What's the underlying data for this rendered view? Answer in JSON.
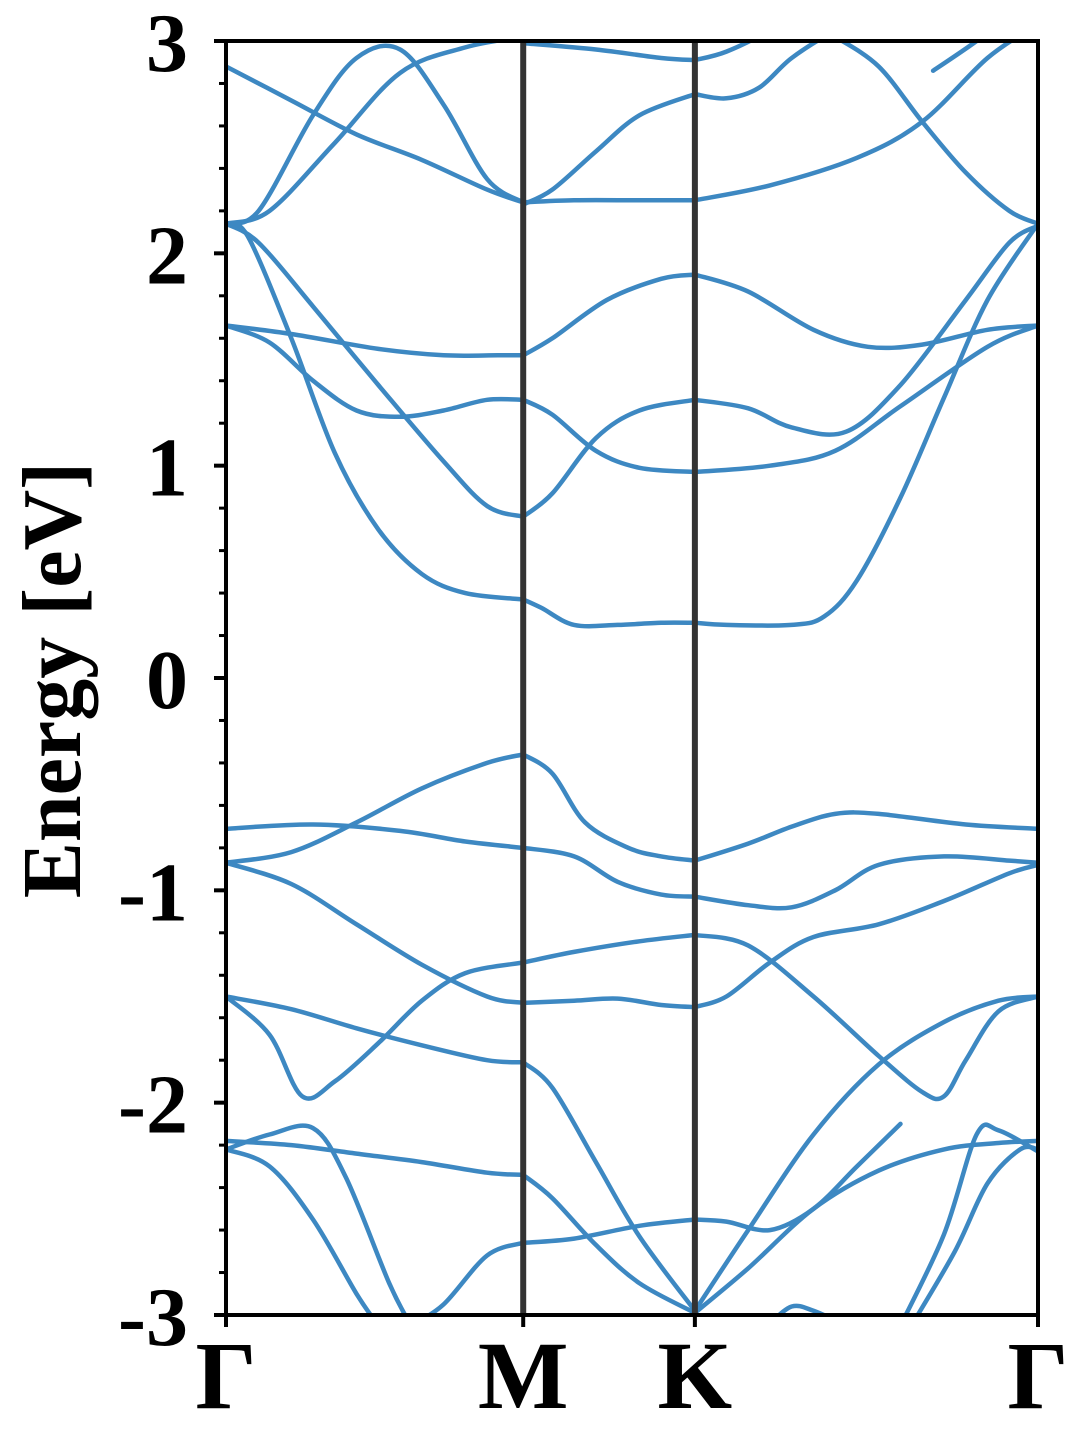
{
  "chart_data": {
    "type": "line",
    "title": "",
    "xlabel": "",
    "ylabel": "Energy [eV]",
    "ylim": [
      -3,
      3
    ],
    "xlim": [
      0,
      3.732
    ],
    "yticks": [
      {
        "value": 3,
        "label": "3"
      },
      {
        "value": 2,
        "label": "2"
      },
      {
        "value": 1,
        "label": "1"
      },
      {
        "value": 0,
        "label": "0"
      },
      {
        "value": -1,
        "label": "-1"
      },
      {
        "value": -2,
        "label": "-2"
      },
      {
        "value": -3,
        "label": "-3"
      }
    ],
    "yminor_step": 0.2,
    "high_symmetry_points": [
      {
        "label": "Γ",
        "x": 0
      },
      {
        "label": "M",
        "x": 1.366
      },
      {
        "label": "K",
        "x": 2.155
      },
      {
        "label": "Γ",
        "x": 3.732
      }
    ],
    "grid": false,
    "colors": {
      "band": "#3d88c2",
      "divider": "#333333",
      "axis": "#000000"
    },
    "series": [
      {
        "x": [
          0,
          0.3,
          0.7,
          1.0,
          1.25,
          1.366
        ],
        "values": [
          1.66,
          1.62,
          1.55,
          1.52,
          1.52,
          1.52
        ]
      },
      {
        "x": [
          1.366,
          1.5,
          1.75,
          2.0,
          2.155
        ],
        "values": [
          1.52,
          1.6,
          1.78,
          1.88,
          1.9
        ]
      },
      {
        "x": [
          2.155,
          2.4,
          2.7,
          2.95,
          3.2,
          3.5,
          3.732
        ],
        "values": [
          1.9,
          1.82,
          1.64,
          1.56,
          1.57,
          1.64,
          1.66
        ]
      },
      {
        "x": [
          0,
          0.2,
          0.4,
          0.6,
          0.8,
          1.0,
          1.2,
          1.366
        ],
        "values": [
          1.66,
          1.58,
          1.4,
          1.26,
          1.23,
          1.26,
          1.31,
          1.31
        ]
      },
      {
        "x": [
          1.366,
          1.5,
          1.7,
          1.9,
          2.155
        ],
        "values": [
          1.31,
          1.24,
          1.07,
          0.99,
          0.97
        ]
      },
      {
        "x": [
          2.155,
          2.5,
          2.8,
          3.1,
          3.5,
          3.732
        ],
        "values": [
          0.97,
          1.0,
          1.07,
          1.28,
          1.56,
          1.66
        ]
      },
      {
        "x": [
          0,
          0.15,
          0.4,
          0.7,
          1.0,
          1.2,
          1.366
        ],
        "values": [
          2.14,
          2.05,
          1.75,
          1.38,
          1.02,
          0.81,
          0.76
        ]
      },
      {
        "x": [
          1.366,
          1.5,
          1.7,
          1.9,
          2.155
        ],
        "values": [
          0.76,
          0.87,
          1.13,
          1.26,
          1.31
        ]
      },
      {
        "x": [
          2.155,
          2.4,
          2.6,
          2.85,
          3.1,
          3.4,
          3.6,
          3.732
        ],
        "values": [
          1.31,
          1.27,
          1.18,
          1.16,
          1.38,
          1.78,
          2.05,
          2.13
        ]
      },
      {
        "x": [
          0,
          0.1,
          0.3,
          0.5,
          0.7,
          0.9,
          1.1,
          1.366
        ],
        "values": [
          2.14,
          2.08,
          1.6,
          1.06,
          0.7,
          0.49,
          0.4,
          0.37
        ]
      },
      {
        "x": [
          1.366,
          1.45,
          1.6,
          1.8,
          2.0,
          2.155
        ],
        "values": [
          0.37,
          0.33,
          0.25,
          0.25,
          0.26,
          0.26
        ]
      },
      {
        "x": [
          2.155,
          2.3,
          2.6,
          2.75,
          2.9,
          3.1,
          3.3,
          3.5,
          3.732
        ],
        "values": [
          0.26,
          0.25,
          0.25,
          0.29,
          0.46,
          0.85,
          1.32,
          1.78,
          2.14
        ]
      },
      {
        "x": [
          0,
          0.15,
          0.4,
          0.6,
          0.8,
          1.0,
          1.2,
          1.366
        ],
        "values": [
          2.14,
          2.2,
          2.65,
          2.92,
          2.96,
          2.7,
          2.35,
          2.24
        ]
      },
      {
        "x": [
          0,
          0.2,
          0.5,
          0.8,
          1.1,
          1.366
        ],
        "values": [
          2.14,
          2.2,
          2.52,
          2.85,
          2.97,
          3.02
        ]
      },
      {
        "x": [
          0,
          0.3,
          0.6,
          0.9,
          1.2,
          1.366
        ],
        "values": [
          2.88,
          2.72,
          2.56,
          2.44,
          2.3,
          2.24
        ]
      },
      {
        "x": [
          1.366,
          1.6,
          1.9,
          2.155
        ],
        "values": [
          2.24,
          2.25,
          2.25,
          2.25
        ]
      },
      {
        "x": [
          2.155,
          2.5,
          2.9,
          3.2,
          3.5,
          3.732
        ],
        "values": [
          2.25,
          2.32,
          2.45,
          2.62,
          2.92,
          3.08
        ]
      },
      {
        "x": [
          1.366,
          1.5,
          1.7,
          1.9,
          2.155
        ],
        "values": [
          2.23,
          2.3,
          2.48,
          2.65,
          2.75
        ]
      },
      {
        "x": [
          2.155,
          2.3,
          2.45,
          2.6,
          2.8,
          3.0
        ],
        "values": [
          2.75,
          2.73,
          2.78,
          2.92,
          3.05,
          3.15
        ]
      },
      {
        "x": [
          1.366,
          1.7,
          2.0,
          2.155
        ],
        "values": [
          2.99,
          2.96,
          2.92,
          2.91
        ]
      },
      {
        "x": [
          2.155,
          2.3,
          2.5,
          2.7
        ],
        "values": [
          2.91,
          2.95,
          3.05,
          3.18
        ]
      },
      {
        "x": [
          2.8,
          3.0,
          3.2,
          3.4,
          3.6,
          3.732
        ],
        "values": [
          3.02,
          2.88,
          2.62,
          2.38,
          2.2,
          2.14
        ]
      },
      {
        "x": [
          3.25,
          3.45,
          3.6,
          3.732
        ],
        "values": [
          2.86,
          3.0,
          3.12,
          3.2
        ]
      },
      {
        "x": [
          0,
          0.4,
          0.8,
          1.1,
          1.366
        ],
        "values": [
          -0.71,
          -0.69,
          -0.72,
          -0.77,
          -0.8
        ]
      },
      {
        "x": [
          1.366,
          1.6,
          1.8,
          2.0,
          2.155
        ],
        "values": [
          -0.8,
          -0.84,
          -0.96,
          -1.02,
          -1.03
        ]
      },
      {
        "x": [
          2.155,
          2.4,
          2.6,
          2.8,
          3.0,
          3.3,
          3.6,
          3.732
        ],
        "values": [
          -1.03,
          -1.07,
          -1.08,
          -1.0,
          -0.88,
          -0.84,
          -0.86,
          -0.87
        ]
      },
      {
        "x": [
          0,
          0.3,
          0.6,
          0.9,
          1.2,
          1.366
        ],
        "values": [
          -0.87,
          -0.82,
          -0.68,
          -0.52,
          -0.4,
          -0.36
        ]
      },
      {
        "x": [
          1.366,
          1.5,
          1.65,
          1.85,
          2.0,
          2.155
        ],
        "values": [
          -0.36,
          -0.45,
          -0.68,
          -0.8,
          -0.84,
          -0.86
        ]
      },
      {
        "x": [
          2.155,
          2.4,
          2.6,
          2.8,
          3.0,
          3.4,
          3.732
        ],
        "values": [
          -0.86,
          -0.78,
          -0.7,
          -0.64,
          -0.64,
          -0.69,
          -0.71
        ]
      },
      {
        "x": [
          0,
          0.3,
          0.6,
          0.9,
          1.2,
          1.366
        ],
        "values": [
          -0.87,
          -0.97,
          -1.16,
          -1.35,
          -1.5,
          -1.53
        ]
      },
      {
        "x": [
          1.366,
          1.6,
          1.8,
          2.0,
          2.155
        ],
        "values": [
          -1.53,
          -1.52,
          -1.51,
          -1.54,
          -1.55
        ]
      },
      {
        "x": [
          2.155,
          2.3,
          2.5,
          2.7,
          3.0,
          3.3,
          3.6,
          3.732
        ],
        "values": [
          -1.55,
          -1.5,
          -1.34,
          -1.22,
          -1.16,
          -1.05,
          -0.92,
          -0.88
        ]
      },
      {
        "x": [
          0,
          0.2,
          0.35,
          0.5,
          0.7,
          0.9,
          1.1,
          1.366
        ],
        "values": [
          -1.5,
          -1.68,
          -1.97,
          -1.9,
          -1.72,
          -1.52,
          -1.39,
          -1.34
        ]
      },
      {
        "x": [
          1.366,
          1.6,
          1.9,
          2.155
        ],
        "values": [
          -1.34,
          -1.29,
          -1.24,
          -1.21
        ]
      },
      {
        "x": [
          2.155,
          2.4,
          2.7,
          3.0,
          3.2,
          3.3,
          3.4,
          3.55,
          3.732
        ],
        "values": [
          -1.21,
          -1.26,
          -1.5,
          -1.78,
          -1.95,
          -1.97,
          -1.8,
          -1.57,
          -1.5
        ]
      },
      {
        "x": [
          0,
          0.3,
          0.6,
          0.9,
          1.2,
          1.366
        ],
        "values": [
          -1.5,
          -1.56,
          -1.65,
          -1.73,
          -1.8,
          -1.81
        ]
      },
      {
        "x": [
          1.366,
          1.5,
          1.7,
          1.9,
          2.155
        ],
        "values": [
          -1.81,
          -1.93,
          -2.28,
          -2.63,
          -2.98
        ]
      },
      {
        "x": [
          2.155,
          2.4,
          2.7,
          3.0,
          3.3,
          3.55,
          3.732
        ],
        "values": [
          -2.98,
          -2.6,
          -2.15,
          -1.82,
          -1.62,
          -1.52,
          -1.5
        ]
      },
      {
        "x": [
          0,
          0.3,
          0.6,
          0.9,
          1.2,
          1.366
        ],
        "values": [
          -2.18,
          -2.2,
          -2.24,
          -2.28,
          -2.33,
          -2.34
        ]
      },
      {
        "x": [
          1.366,
          1.5,
          1.7,
          1.9,
          2.155
        ],
        "values": [
          -2.34,
          -2.45,
          -2.67,
          -2.85,
          -2.99
        ]
      },
      {
        "x": [
          2.155,
          2.4,
          2.7,
          3.0,
          3.3,
          3.55,
          3.732
        ],
        "values": [
          -2.99,
          -2.78,
          -2.5,
          -2.32,
          -2.22,
          -2.19,
          -2.18
        ]
      },
      {
        "x": [
          0,
          0.2,
          0.4,
          0.55,
          0.75,
          0.85
        ],
        "values": [
          -2.22,
          -2.15,
          -2.12,
          -2.35,
          -2.85,
          -3.05
        ]
      },
      {
        "x": [
          0,
          0.2,
          0.4,
          0.6,
          0.7
        ],
        "values": [
          -2.22,
          -2.3,
          -2.55,
          -2.9,
          -3.05
        ]
      },
      {
        "x": [
          0.85,
          1.0,
          1.2,
          1.366
        ],
        "values": [
          -3.05,
          -2.95,
          -2.72,
          -2.66
        ]
      },
      {
        "x": [
          1.366,
          1.6,
          1.9,
          2.155
        ],
        "values": [
          -2.66,
          -2.64,
          -2.58,
          -2.55
        ]
      },
      {
        "x": [
          2.155,
          2.3,
          2.5,
          2.7,
          2.9,
          3.1
        ],
        "values": [
          -2.55,
          -2.56,
          -2.6,
          -2.5,
          -2.3,
          -2.1
        ]
      },
      {
        "x": [
          2.5,
          2.6,
          2.7,
          2.85
        ],
        "values": [
          -3.04,
          -2.96,
          -2.98,
          -3.05
        ]
      },
      {
        "x": [
          3.1,
          3.3,
          3.45,
          3.55,
          3.732
        ],
        "values": [
          -3.05,
          -2.62,
          -2.15,
          -2.13,
          -2.23
        ]
      },
      {
        "x": [
          3.15,
          3.35,
          3.5,
          3.65,
          3.732
        ],
        "values": [
          -3.05,
          -2.7,
          -2.38,
          -2.22,
          -2.22
        ]
      }
    ]
  }
}
